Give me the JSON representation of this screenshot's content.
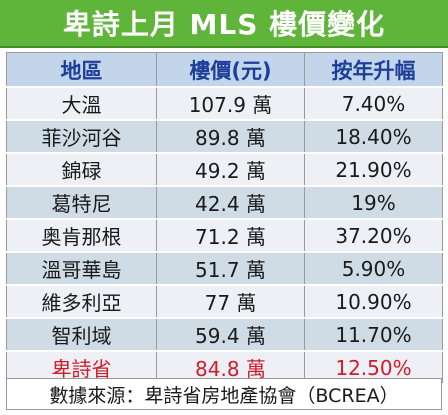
{
  "title": "卑詩上月 MLS 樓價變化",
  "columns": [
    "地區",
    "樓價(元)",
    "按年升幅"
  ],
  "rows": [
    {
      "region": "大溫",
      "price": "107.9 萬",
      "growth": "7.40%"
    },
    {
      "region": "菲沙河谷",
      "price": "89.8 萬",
      "growth": "18.40%"
    },
    {
      "region": "錦碌",
      "price": "49.2 萬",
      "growth": "21.90%"
    },
    {
      "region": "葛特尼",
      "price": "42.4 萬",
      "growth": "19%"
    },
    {
      "region": "奥肯那根",
      "price": "71.2 萬",
      "growth": "37.20%"
    },
    {
      "region": "溫哥華島",
      "price": "51.7 萬",
      "growth": "5.90%"
    },
    {
      "region": "維多利亞",
      "price": "77 萬",
      "growth": "10.90%"
    },
    {
      "region": "智利域",
      "price": "59.4 萬",
      "growth": "11.70%"
    },
    {
      "region": "卑詩省",
      "price": "84.8 萬",
      "growth": "12.50%"
    }
  ],
  "footer": "數據來源：卑詩省房地產協會（BCREA）",
  "colors": {
    "title_bg": "#5fb43a",
    "header_text": "#1d3f9a",
    "header_bg": "#c3d5ea",
    "row_light": "#eef0f6",
    "row_dark": "#cfdce6",
    "highlight_text": "#d11b2a"
  }
}
